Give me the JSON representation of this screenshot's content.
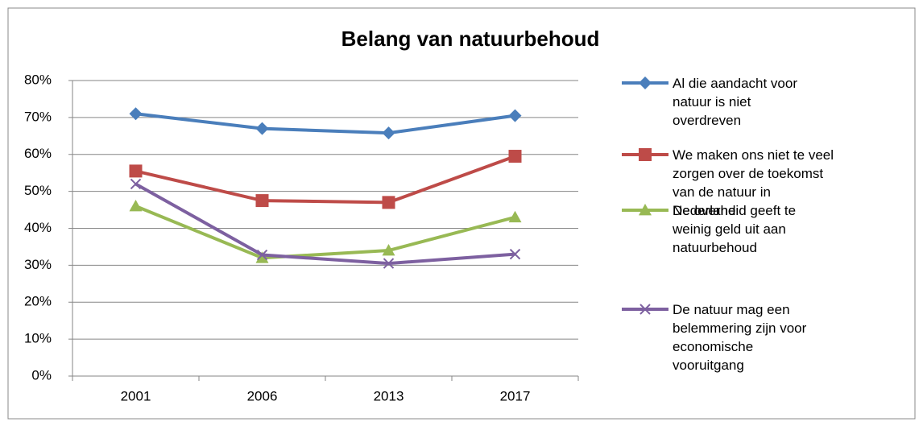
{
  "chart_data": {
    "type": "line",
    "title": "Belang van natuurbehoud",
    "categories": [
      "2001",
      "2006",
      "2013",
      "2017"
    ],
    "series": [
      {
        "name": "Al die aandacht voor natuur is niet overdreven",
        "color": "#4a7ebb",
        "marker": "diamond",
        "values": [
          71,
          67,
          65.8,
          70.5
        ]
      },
      {
        "name": "We maken ons niet te veel zorgen over de toekomst van de natuur in Nederland",
        "color": "#be4b48",
        "marker": "square",
        "values": [
          55.5,
          47.5,
          47,
          59.5
        ]
      },
      {
        "name": "De overheid geeft te weinig geld uit aan natuurbehoud",
        "color": "#98b954",
        "marker": "triangle",
        "values": [
          46,
          32,
          34,
          43
        ]
      },
      {
        "name": "De natuur mag een belemmering zijn voor economische vooruitgang",
        "color": "#7d60a0",
        "marker": "x",
        "values": [
          52,
          32.8,
          30.5,
          33
        ]
      }
    ],
    "ylim": [
      0,
      80
    ],
    "yticks": [
      {
        "value": 0,
        "label": "0%"
      },
      {
        "value": 10,
        "label": "10%"
      },
      {
        "value": 20,
        "label": "20%"
      },
      {
        "value": 30,
        "label": "30%"
      },
      {
        "value": 40,
        "label": "40%"
      },
      {
        "value": 50,
        "label": "50%"
      },
      {
        "value": 60,
        "label": "60%"
      },
      {
        "value": 70,
        "label": "70%"
      },
      {
        "value": 80,
        "label": "80%"
      }
    ],
    "grid": true,
    "legend": "right"
  }
}
